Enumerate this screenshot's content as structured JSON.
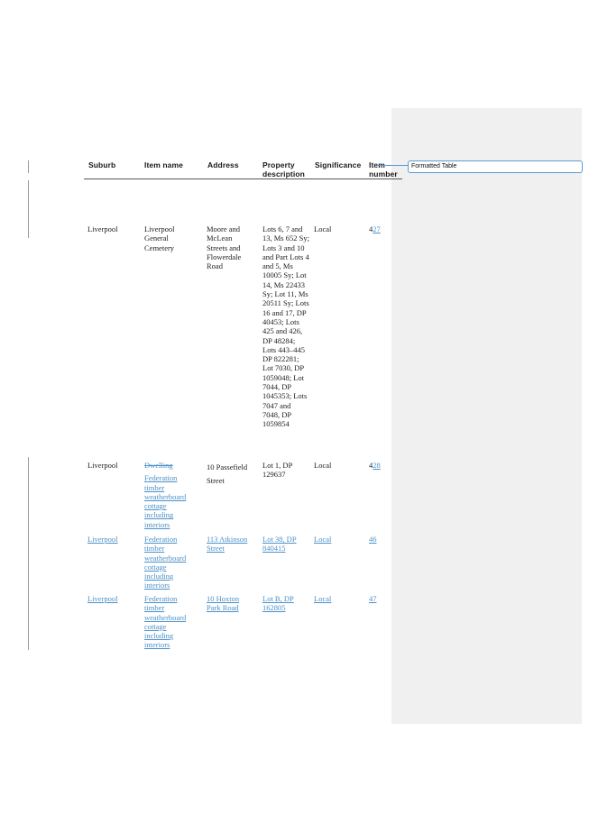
{
  "table": {
    "headers": {
      "suburb": "Suburb",
      "item_name": "Item name",
      "address": "Address",
      "property_description": "Property description",
      "significance": "Significance",
      "item_number": "Item number"
    },
    "rows": [
      {
        "suburb": "Liverpool",
        "item_name": "Liverpool General Cemetery",
        "address": "Moore and McLean Streets and Flowerdale Road",
        "property_description": "Lots 6, 7 and 13, Ms 652 Sy; Lots 3 and 10 and Part Lots 4 and 5, Ms 10005 Sy; Lot 14, Ms 22433 Sy; Lot 11, Ms 20511 Sy; Lots 16 and 17, DP 40453; Lots 425 and 426, DP 48284; Lots 443–445 DP 822281; Lot 7030, DP 1059048; Lot 7044, DP 1045353; Lots 7047 and 7048, DP 1059854",
        "significance": "Local",
        "item_number_kept": "4",
        "item_number_inserted": "27"
      },
      {
        "suburb": "Liverpool",
        "item_name_deleted": "Dwelling",
        "item_name_inserted": "Federation timber weatherboard cottage including interiors",
        "address": "10 Passefield Street",
        "property_description": "Lot 1, DP 129637",
        "significance": "Local",
        "item_number_kept": "4",
        "item_number_inserted": "28"
      },
      {
        "suburb": "Liverpool",
        "item_name": "Federation timber weatherboard cottage including interiors",
        "address": "113 Atkinson Street",
        "property_description": "Lot 38, DP 840415",
        "significance": "Local",
        "item_number": "46"
      },
      {
        "suburb": "Liverpool",
        "item_name": "Federation timber weatherboard cottage including interiors",
        "address": "10 Hoxton Park Road",
        "property_description": "Lot B, DP 162805",
        "significance": "Local",
        "item_number": "47"
      }
    ]
  },
  "comment": {
    "label": "Formatted Table"
  },
  "colors": {
    "revision": "#4a90c8",
    "callout_border": "#5b9bd5",
    "comment_pane": "#f0f0f0"
  }
}
